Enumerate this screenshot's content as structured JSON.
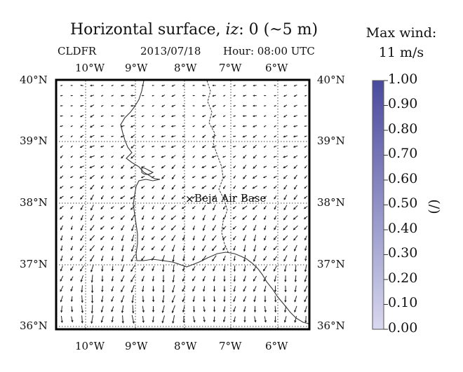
{
  "title": {
    "prefix": "Horizontal surface, ",
    "var": "iz",
    "suffix": ": 0 (~5 m)"
  },
  "model": "CLDFR",
  "date": "2013/07/18",
  "hour": "Hour: 08:00 UTC",
  "lon_labels": [
    "10°W",
    "9°W",
    "8°W",
    "7°W",
    "6°W"
  ],
  "lat_labels": [
    "40°N",
    "39°N",
    "38°N",
    "37°N",
    "36°N"
  ],
  "location": {
    "name": "Beja Air Base",
    "marker": "×",
    "lon": -7.9,
    "lat": 38.08
  },
  "max_wind": {
    "label": "Max wind:",
    "value": "11 m/s"
  },
  "colorbar": {
    "unit": "(/)",
    "ticks": [
      "1.00",
      "0.90",
      "0.80",
      "0.70",
      "0.60",
      "0.50",
      "0.40",
      "0.30",
      "0.20",
      "0.10",
      "0.00"
    ],
    "color_top": "#4a4a9e",
    "color_bottom": "#d8d8ef"
  },
  "map_extent": {
    "lon_min": -10.8,
    "lon_max": -5.3,
    "lat_min": 35.95,
    "lat_max": 40.0
  },
  "colors": {
    "arrows": "#222222",
    "coast": "#333333",
    "grid": "#444444"
  }
}
